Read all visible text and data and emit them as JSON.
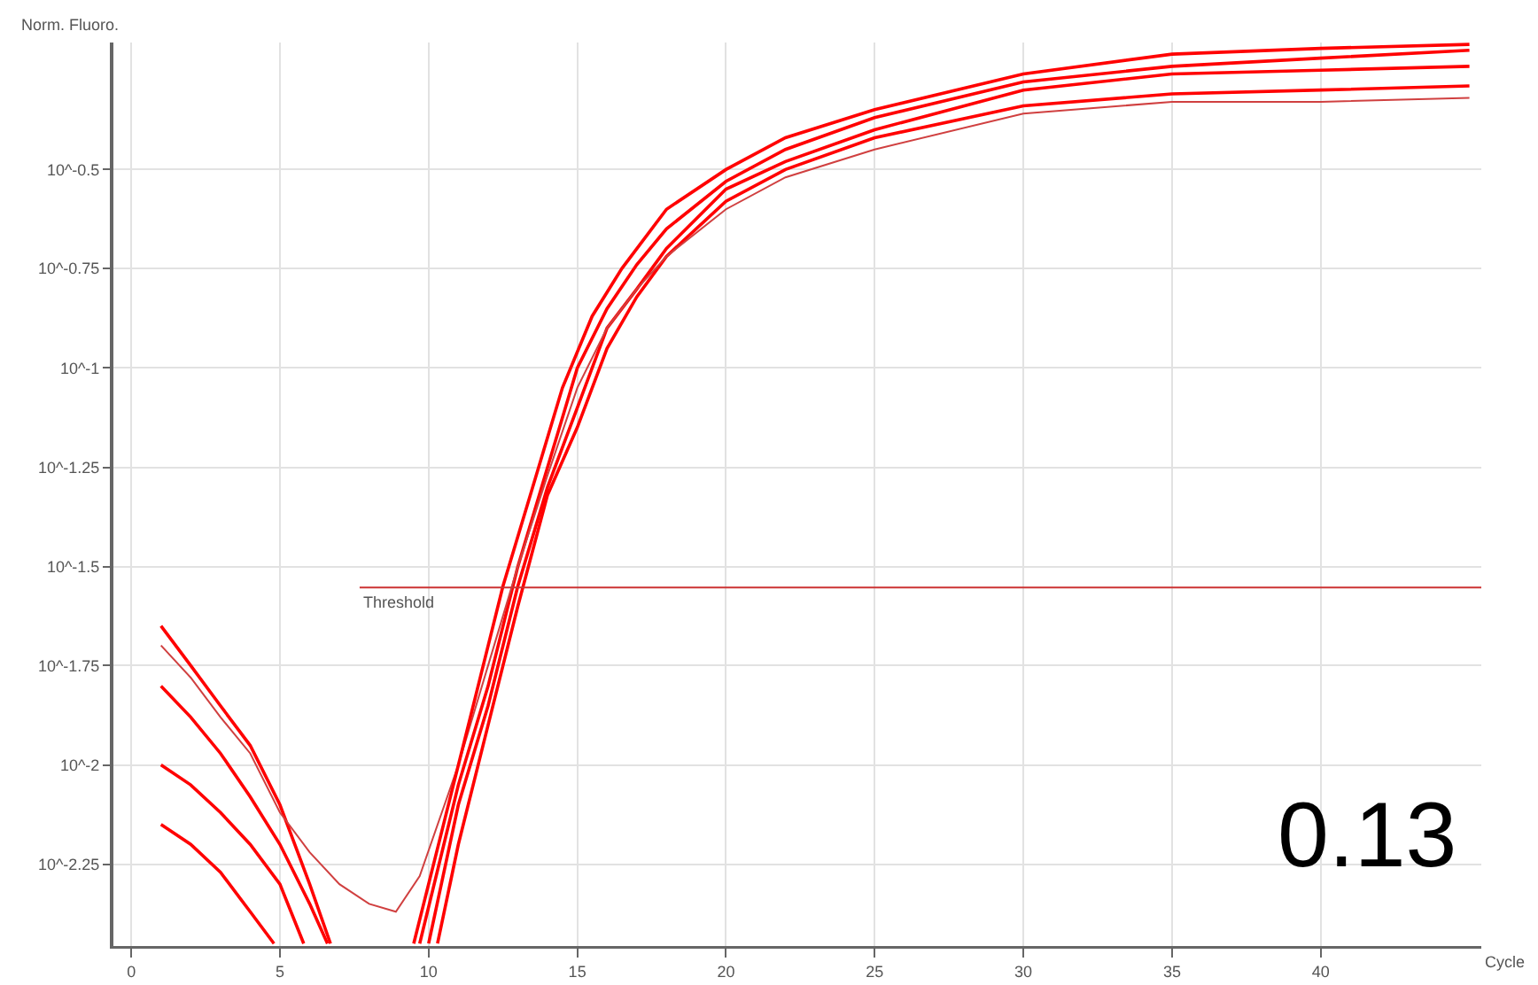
{
  "chart_data": {
    "type": "line",
    "xlabel": "Cycle",
    "ylabel": "Norm. Fluoro.",
    "log": "y",
    "grid": true,
    "marker": "none",
    "line_style": "solid",
    "xlim": [
      -0.6,
      45.4
    ],
    "xticks": [
      0,
      5,
      10,
      15,
      20,
      25,
      30,
      35,
      40
    ],
    "ylim": [
      0.0035,
      0.66
    ],
    "yticks": [
      {
        "value": 0.316,
        "label": "10^-0.5"
      },
      {
        "value": 0.178,
        "label": "10^-0.75"
      },
      {
        "value": 0.1,
        "label": "10^-1"
      },
      {
        "value": 0.0562,
        "label": "10^-1.25"
      },
      {
        "value": 0.0316,
        "label": "10^-1.5"
      },
      {
        "value": 0.0178,
        "label": "10^-1.75"
      },
      {
        "value": 0.01,
        "label": "10^-2"
      },
      {
        "value": 0.00562,
        "label": "10^-2.25"
      }
    ],
    "ref_lines": [
      {
        "axis": "y",
        "value": 0.028,
        "label": "Threshold",
        "color": "#cc3333"
      }
    ],
    "annotations": [
      "0.13"
    ],
    "series": [
      {
        "color": "#ff0000",
        "x": [
          1,
          2,
          3,
          4,
          5,
          6,
          6.7,
          8,
          9.7,
          11,
          12,
          13,
          14,
          15,
          16,
          17,
          18,
          20,
          22,
          25,
          30,
          35,
          40,
          45
        ],
        "values": [
          0.0224,
          0.0178,
          0.0141,
          0.0112,
          0.00794,
          0.00501,
          0.00355,
          null,
          0.00355,
          0.00891,
          0.0158,
          0.0316,
          0.0562,
          0.1,
          0.141,
          0.182,
          0.224,
          0.295,
          0.355,
          0.427,
          0.525,
          0.575,
          0.603,
          0.631
        ]
      },
      {
        "color": "#ff0000",
        "x": [
          1,
          2,
          3,
          4,
          5,
          6,
          6.6,
          8,
          10,
          11,
          12,
          13,
          14,
          15,
          16,
          17,
          18,
          20,
          22,
          25,
          30,
          35,
          40,
          45
        ],
        "values": [
          0.0158,
          0.0132,
          0.0107,
          0.00832,
          0.00631,
          0.00447,
          0.00355,
          null,
          0.00355,
          0.00794,
          0.0141,
          0.0282,
          0.0501,
          0.0794,
          0.126,
          0.158,
          0.2,
          0.282,
          0.331,
          0.398,
          0.501,
          0.55,
          0.562,
          0.575
        ]
      },
      {
        "color": "#ff0000",
        "x": [
          1,
          2,
          3,
          4,
          5,
          5.8,
          8,
          10.3,
          11,
          12,
          13,
          14,
          15,
          16,
          17,
          18,
          20,
          22,
          25,
          30,
          35,
          40,
          45
        ],
        "values": [
          0.01,
          0.00891,
          0.00759,
          0.00631,
          0.00501,
          0.00355,
          null,
          0.00355,
          0.00631,
          0.0126,
          0.0251,
          0.0479,
          0.0708,
          0.112,
          0.151,
          0.191,
          0.263,
          0.316,
          0.38,
          0.457,
          0.49,
          0.501,
          0.513
        ]
      },
      {
        "color": "#d04040",
        "x": [
          1,
          2,
          3,
          4,
          5,
          6,
          7,
          8,
          8.9,
          9.7,
          11,
          12,
          13,
          14,
          15,
          16,
          17,
          18,
          20,
          22,
          25,
          30,
          35,
          40,
          45
        ],
        "values": [
          0.02,
          0.0166,
          0.0132,
          0.0107,
          0.00759,
          0.00603,
          0.00501,
          0.00447,
          0.00427,
          0.00525,
          0.01,
          0.0178,
          0.0316,
          0.0537,
          0.0891,
          0.126,
          0.158,
          0.191,
          0.251,
          0.302,
          0.355,
          0.437,
          0.468,
          0.468,
          0.479
        ]
      },
      {
        "color": "#ff0000",
        "x": [
          1,
          2,
          3,
          4,
          4.8,
          8,
          9.5,
          10.5,
          11.5,
          12.5,
          13.5,
          14.5,
          15.5,
          16.5,
          18,
          20,
          22,
          25,
          30,
          35,
          40,
          45
        ],
        "values": [
          0.00708,
          0.00631,
          0.00537,
          0.00427,
          0.00355,
          null,
          0.00355,
          0.00708,
          0.0141,
          0.0282,
          0.0501,
          0.0891,
          0.135,
          0.178,
          0.251,
          0.316,
          0.38,
          0.447,
          0.55,
          0.617,
          0.638,
          0.653
        ]
      }
    ]
  }
}
